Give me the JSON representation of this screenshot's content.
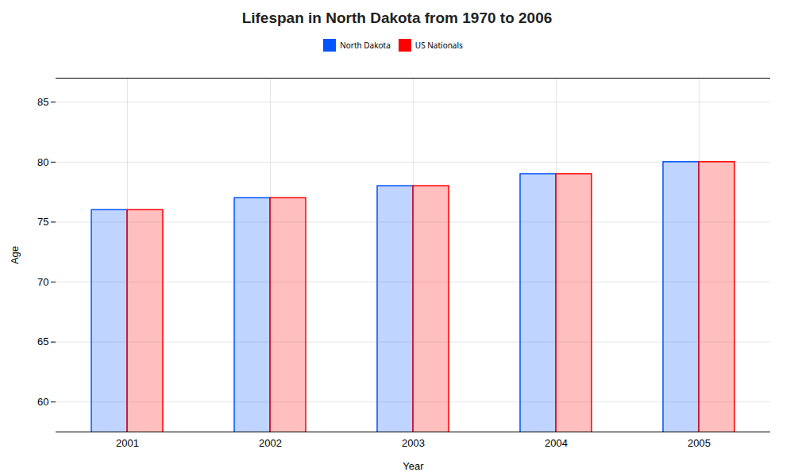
{
  "chart_data": {
    "type": "bar",
    "title": "Lifespan in North Dakota from 1970 to 2006",
    "xlabel": "Year",
    "ylabel": "Age",
    "categories": [
      "2001",
      "2002",
      "2003",
      "2004",
      "2005"
    ],
    "series": [
      {
        "name": "North Dakota",
        "color": "#0055ff",
        "values": [
          76,
          77,
          78,
          79,
          80
        ]
      },
      {
        "name": "US Nationals",
        "color": "#ff0000",
        "values": [
          76,
          77,
          78,
          79,
          80
        ]
      }
    ],
    "ylim": [
      57.5,
      87
    ],
    "yticks": [
      60,
      65,
      70,
      75,
      80,
      85
    ],
    "grid": true,
    "legend": "top"
  }
}
